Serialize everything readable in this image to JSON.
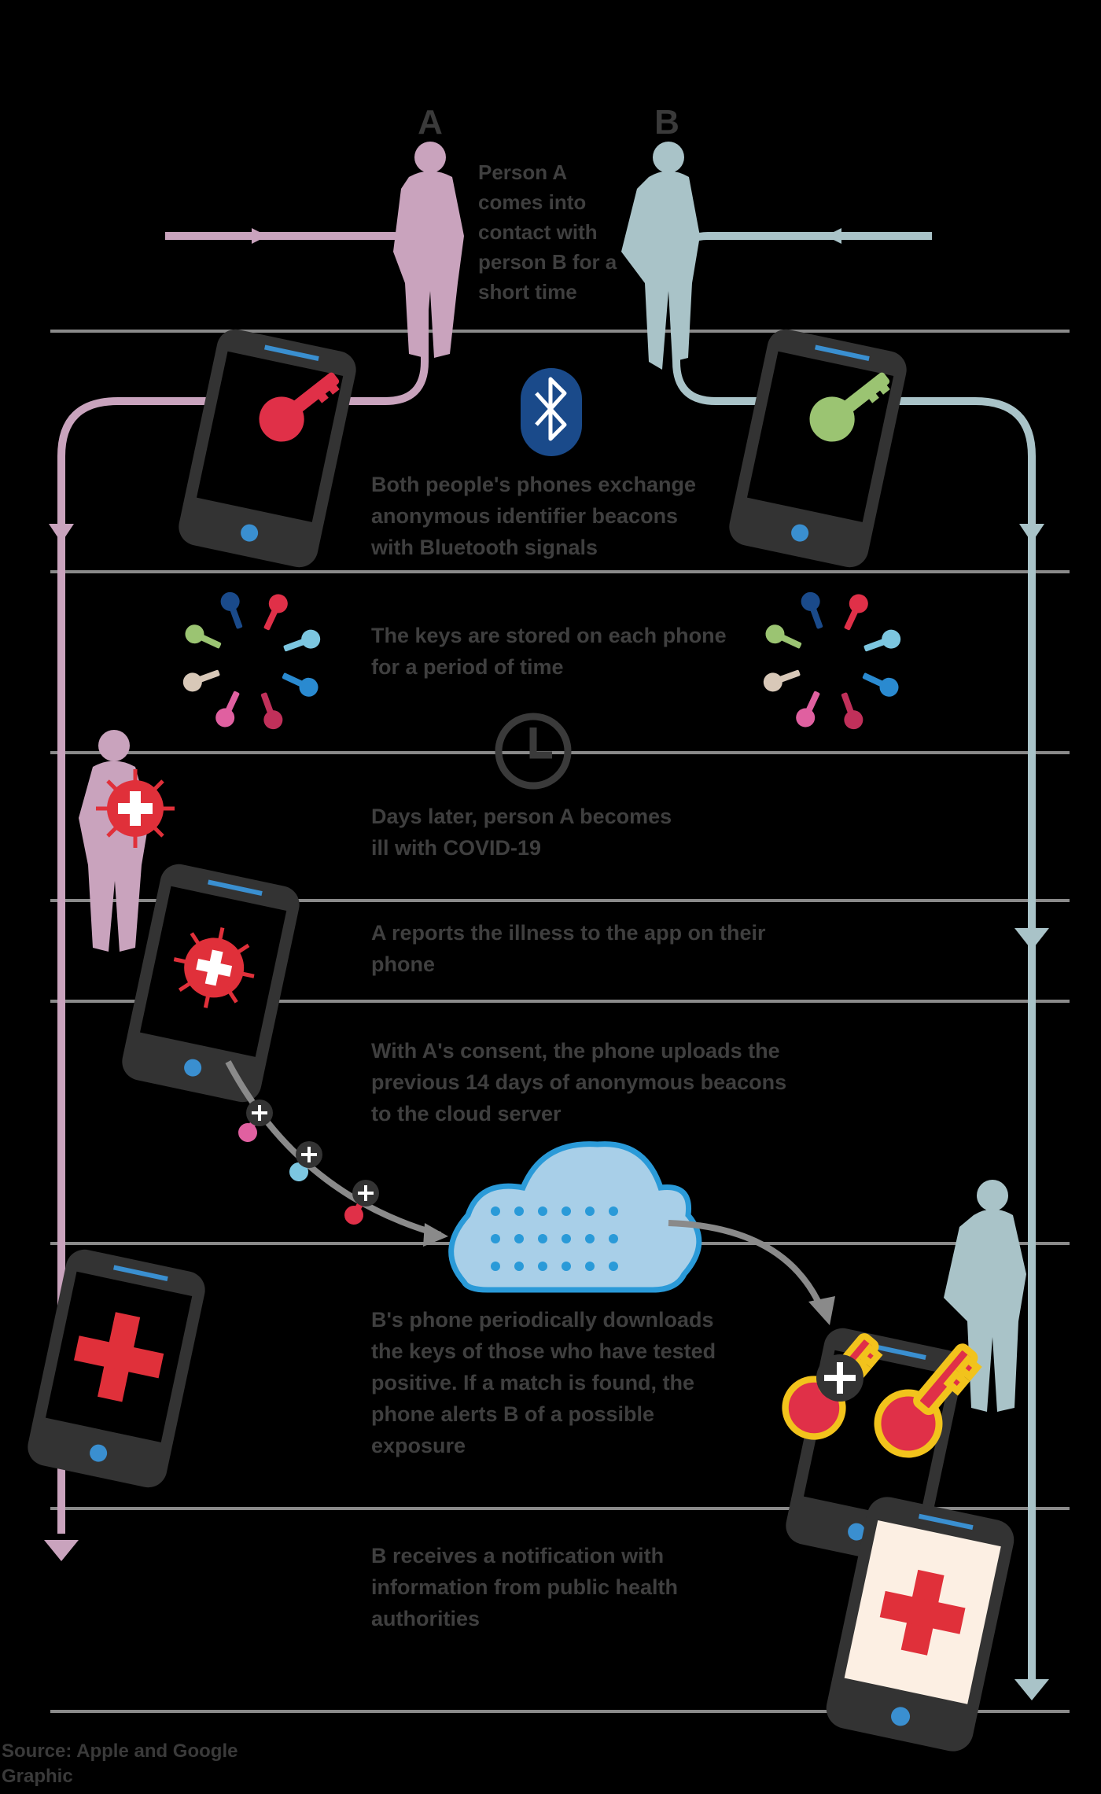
{
  "title": "",
  "people": {
    "a_label": "A",
    "b_label": "B",
    "meet_text": "Person A comes into contact with person B for a short time"
  },
  "steps": [
    {
      "id": "exchange",
      "text": "Both people's phones exchange anonymous identifier beacons with Bluetooth signals"
    },
    {
      "id": "store",
      "text": "The keys are stored on each phone for a period of time"
    },
    {
      "id": "days_later",
      "text": "Days later, person A becomes ill with COVID-19"
    },
    {
      "id": "report",
      "text": "A reports the illness to the app on their phone"
    },
    {
      "id": "upload",
      "text": "With A's consent, the phone uploads the previous 14 days of anonymous beacons to the cloud server"
    },
    {
      "id": "download",
      "text": "B's phone periodically downloads the keys of those who have tested positive. If a match is found, the phone alerts B of a possible exposure"
    },
    {
      "id": "alert",
      "text": "B receives a notification with information from public health authorities"
    }
  ],
  "footer": {
    "source": "Source: Apple and Google",
    "credit": "Graphic"
  },
  "colors": {
    "person_a": "#c9a3bd",
    "person_b": "#a9c3c8",
    "divider": "#8a8a8a",
    "phone": "#333333",
    "screen": "#000000",
    "key_red": "#e03048",
    "key_green": "#9bc472",
    "bluetooth": "#1a4a8a",
    "cloud_fill": "#a8cfe8",
    "cloud_stroke": "#2a9ad8",
    "alert_red": "#e0303a",
    "match_yellow": "#f2c31c",
    "screen_light": "#fcefe3"
  },
  "icons": [
    "person-a-icon",
    "person-b-icon",
    "phone-icon",
    "key-icon",
    "bluetooth-icon",
    "clock-icon",
    "virus-icon",
    "cloud-icon",
    "red-cross-icon",
    "arrow-down-icon"
  ]
}
